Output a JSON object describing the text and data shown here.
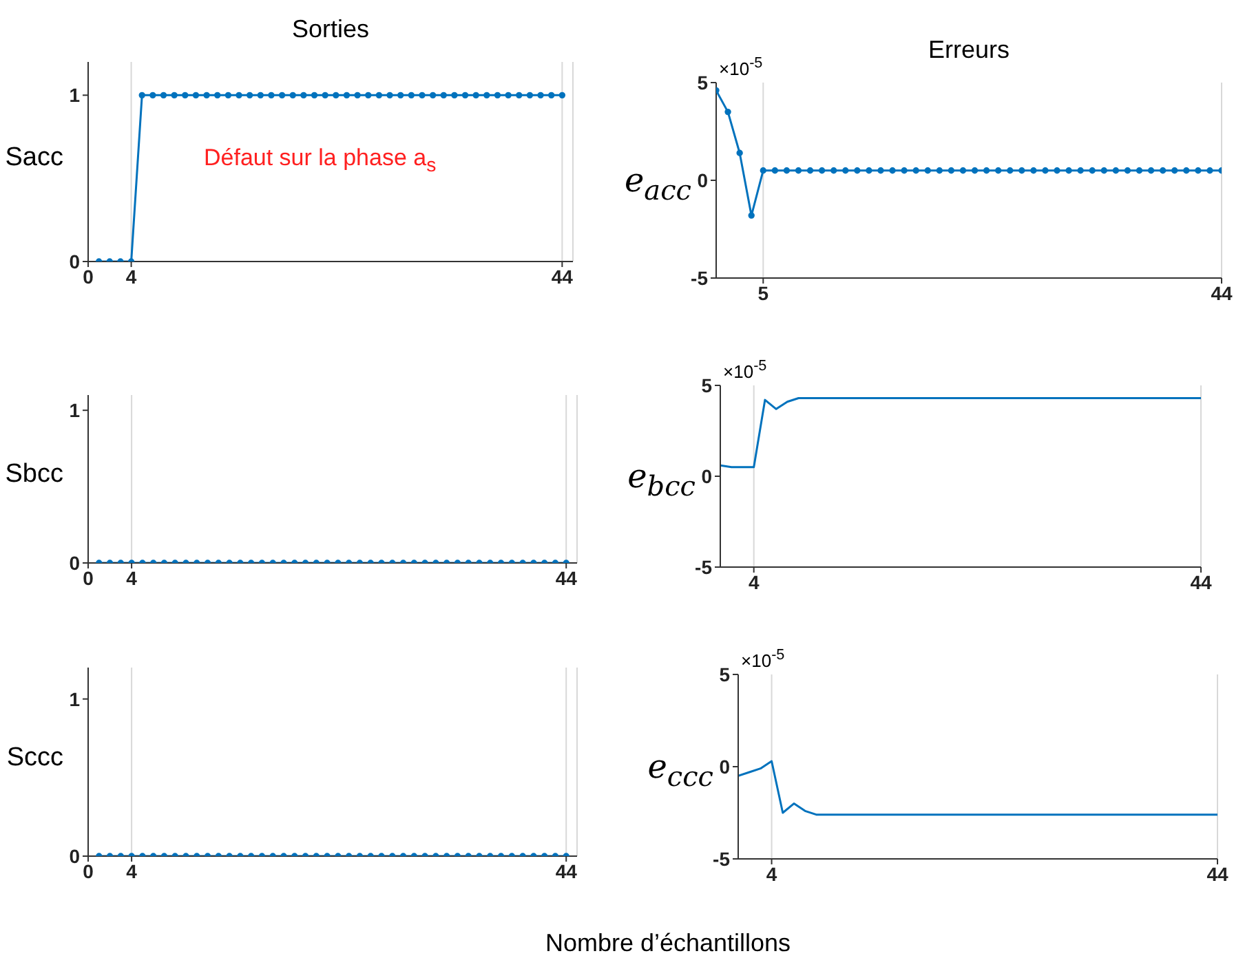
{
  "chart_data": [
    {
      "type": "line",
      "title": "Sorties",
      "ylabel": "Sacc",
      "x": [
        1,
        2,
        3,
        4,
        5,
        6,
        7,
        8,
        9,
        10,
        11,
        12,
        13,
        14,
        15,
        16,
        17,
        18,
        19,
        20,
        21,
        22,
        23,
        24,
        25,
        26,
        27,
        28,
        29,
        30,
        31,
        32,
        33,
        34,
        35,
        36,
        37,
        38,
        39,
        40,
        41,
        42,
        43,
        44
      ],
      "series": [
        {
          "color": "#0072bd",
          "values": [
            0,
            0,
            0,
            0,
            1,
            1,
            1,
            1,
            1,
            1,
            1,
            1,
            1,
            1,
            1,
            1,
            1,
            1,
            1,
            1,
            1,
            1,
            1,
            1,
            1,
            1,
            1,
            1,
            1,
            1,
            1,
            1,
            1,
            1,
            1,
            1,
            1,
            1,
            1,
            1,
            1,
            1,
            1,
            1
          ]
        }
      ],
      "xlim": [
        0,
        45
      ],
      "xticks": [
        0,
        4,
        44
      ],
      "ylim": [
        0,
        1.2
      ],
      "yticks": [
        0,
        1
      ],
      "grid": "x",
      "marker": "circle",
      "annotations": [
        "Défaut sur la phase a$_{s}$"
      ]
    },
    {
      "type": "line",
      "title": "Erreurs",
      "ylabel": "e$_{acc}$",
      "x": [
        1,
        2,
        3,
        4,
        5,
        6,
        7,
        8,
        9,
        10,
        11,
        12,
        13,
        14,
        15,
        16,
        17,
        18,
        19,
        20,
        21,
        22,
        23,
        24,
        25,
        26,
        27,
        28,
        29,
        30,
        31,
        32,
        33,
        34,
        35,
        36,
        37,
        38,
        39,
        40,
        41,
        42,
        43,
        44
      ],
      "series": [
        {
          "color": "#0072bd",
          "values": [
            4.6,
            3.5,
            1.4,
            -1.8,
            0.5,
            0.5,
            0.5,
            0.5,
            0.5,
            0.5,
            0.5,
            0.5,
            0.5,
            0.5,
            0.5,
            0.5,
            0.5,
            0.5,
            0.5,
            0.5,
            0.5,
            0.5,
            0.5,
            0.5,
            0.5,
            0.5,
            0.5,
            0.5,
            0.5,
            0.5,
            0.5,
            0.5,
            0.5,
            0.5,
            0.5,
            0.5,
            0.5,
            0.5,
            0.5,
            0.5,
            0.5,
            0.5,
            0.5,
            0.5
          ]
        }
      ],
      "xlim": [
        1,
        44
      ],
      "xticks": [
        5,
        44
      ],
      "ylim": [
        -5,
        5
      ],
      "yticks": [
        -5,
        0,
        5
      ],
      "grid": "x",
      "marker": "circle",
      "annotations": [
        "×10$^{-5}$"
      ]
    },
    {
      "type": "line",
      "ylabel": "Sbcc",
      "x": [
        1,
        2,
        3,
        4,
        5,
        6,
        7,
        8,
        9,
        10,
        11,
        12,
        13,
        14,
        15,
        16,
        17,
        18,
        19,
        20,
        21,
        22,
        23,
        24,
        25,
        26,
        27,
        28,
        29,
        30,
        31,
        32,
        33,
        34,
        35,
        36,
        37,
        38,
        39,
        40,
        41,
        42,
        43,
        44
      ],
      "series": [
        {
          "color": "#0072bd",
          "values": [
            0,
            0,
            0,
            0,
            0,
            0,
            0,
            0,
            0,
            0,
            0,
            0,
            0,
            0,
            0,
            0,
            0,
            0,
            0,
            0,
            0,
            0,
            0,
            0,
            0,
            0,
            0,
            0,
            0,
            0,
            0,
            0,
            0,
            0,
            0,
            0,
            0,
            0,
            0,
            0,
            0,
            0,
            0,
            0
          ]
        }
      ],
      "xlim": [
        0,
        45
      ],
      "xticks": [
        0,
        4,
        44
      ],
      "ylim": [
        0,
        1.1
      ],
      "yticks": [
        0,
        1
      ],
      "grid": "x",
      "marker": "circle"
    },
    {
      "type": "line",
      "ylabel": "e$_{bcc}$",
      "x": [
        1,
        2,
        3,
        4,
        5,
        6,
        7,
        8,
        9,
        10,
        11,
        12,
        13,
        14,
        15,
        16,
        17,
        18,
        19,
        20,
        21,
        22,
        23,
        24,
        25,
        26,
        27,
        28,
        29,
        30,
        31,
        32,
        33,
        34,
        35,
        36,
        37,
        38,
        39,
        40,
        41,
        42,
        43,
        44
      ],
      "series": [
        {
          "color": "#0072bd",
          "values": [
            0.6,
            0.5,
            0.5,
            0.5,
            4.2,
            3.7,
            4.1,
            4.3,
            4.3,
            4.3,
            4.3,
            4.3,
            4.3,
            4.3,
            4.3,
            4.3,
            4.3,
            4.3,
            4.3,
            4.3,
            4.3,
            4.3,
            4.3,
            4.3,
            4.3,
            4.3,
            4.3,
            4.3,
            4.3,
            4.3,
            4.3,
            4.3,
            4.3,
            4.3,
            4.3,
            4.3,
            4.3,
            4.3,
            4.3,
            4.3,
            4.3,
            4.3,
            4.3,
            4.3
          ]
        }
      ],
      "xlim": [
        1,
        44
      ],
      "xticks": [
        4,
        44
      ],
      "ylim": [
        -5,
        5
      ],
      "yticks": [
        -5,
        0,
        5
      ],
      "grid": "x",
      "marker": "none",
      "annotations": [
        "×10$^{-5}$"
      ]
    },
    {
      "type": "line",
      "ylabel": "Sccc",
      "xlabel": "Nombre d’échantillons",
      "x": [
        1,
        2,
        3,
        4,
        5,
        6,
        7,
        8,
        9,
        10,
        11,
        12,
        13,
        14,
        15,
        16,
        17,
        18,
        19,
        20,
        21,
        22,
        23,
        24,
        25,
        26,
        27,
        28,
        29,
        30,
        31,
        32,
        33,
        34,
        35,
        36,
        37,
        38,
        39,
        40,
        41,
        42,
        43,
        44
      ],
      "series": [
        {
          "color": "#0072bd",
          "values": [
            0,
            0,
            0,
            0,
            0,
            0,
            0,
            0,
            0,
            0,
            0,
            0,
            0,
            0,
            0,
            0,
            0,
            0,
            0,
            0,
            0,
            0,
            0,
            0,
            0,
            0,
            0,
            0,
            0,
            0,
            0,
            0,
            0,
            0,
            0,
            0,
            0,
            0,
            0,
            0,
            0,
            0,
            0,
            0
          ]
        }
      ],
      "xlim": [
        0,
        45
      ],
      "xticks": [
        0,
        4,
        44
      ],
      "ylim": [
        0,
        1.2
      ],
      "yticks": [
        0,
        1
      ],
      "grid": "x",
      "marker": "circle"
    },
    {
      "type": "line",
      "ylabel": "e$_{ccc}$",
      "x": [
        1,
        2,
        3,
        4,
        5,
        6,
        7,
        8,
        9,
        10,
        11,
        12,
        13,
        14,
        15,
        16,
        17,
        18,
        19,
        20,
        21,
        22,
        23,
        24,
        25,
        26,
        27,
        28,
        29,
        30,
        31,
        32,
        33,
        34,
        35,
        36,
        37,
        38,
        39,
        40,
        41,
        42,
        43,
        44
      ],
      "series": [
        {
          "color": "#0072bd",
          "values": [
            -0.5,
            -0.3,
            -0.1,
            0.3,
            -2.5,
            -2.0,
            -2.4,
            -2.6,
            -2.6,
            -2.6,
            -2.6,
            -2.6,
            -2.6,
            -2.6,
            -2.6,
            -2.6,
            -2.6,
            -2.6,
            -2.6,
            -2.6,
            -2.6,
            -2.6,
            -2.6,
            -2.6,
            -2.6,
            -2.6,
            -2.6,
            -2.6,
            -2.6,
            -2.6,
            -2.6,
            -2.6,
            -2.6,
            -2.6,
            -2.6,
            -2.6,
            -2.6,
            -2.6,
            -2.6,
            -2.6,
            -2.6,
            -2.6,
            -2.6,
            -2.6
          ]
        }
      ],
      "xlim": [
        1,
        44
      ],
      "xticks": [
        4,
        44
      ],
      "ylim": [
        -5,
        5
      ],
      "yticks": [
        -5,
        0,
        5
      ],
      "grid": "x",
      "marker": "none",
      "annotations": [
        "×10$^{-5}$"
      ]
    }
  ]
}
